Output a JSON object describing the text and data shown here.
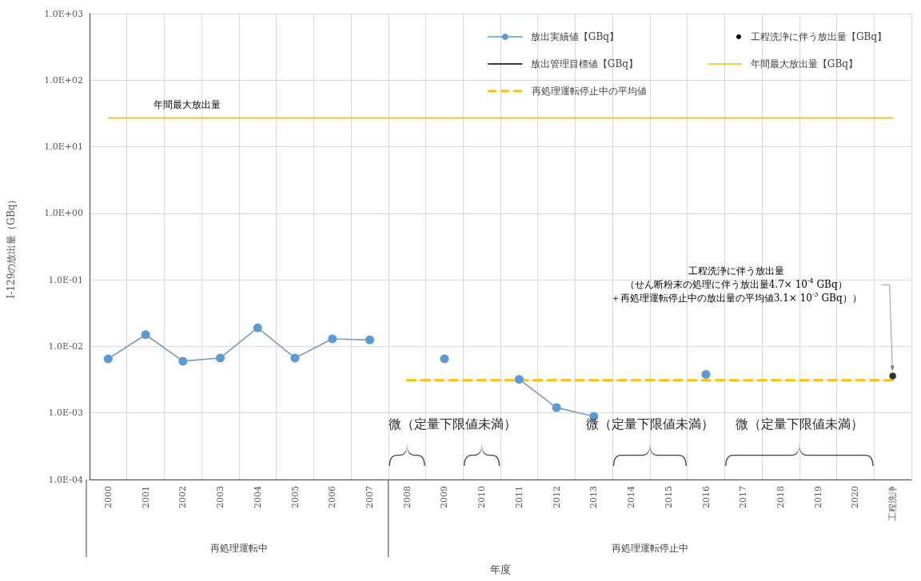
{
  "chart_data": {
    "type": "line",
    "xlabel": "年度",
    "ylabel": "I-129の放出量（GBq）",
    "categories": [
      "2000",
      "2001",
      "2002",
      "2003",
      "2004",
      "2005",
      "2006",
      "2007",
      "2008",
      "2009",
      "2010",
      "2011",
      "2012",
      "2013",
      "2014",
      "2015",
      "2016",
      "2017",
      "2018",
      "2019",
      "2020",
      "工程洗浄"
    ],
    "series": [
      {
        "name": "放出実績値【GBq】",
        "color": "#5b9bd5",
        "marker": "circle",
        "values": [
          0.0065,
          0.015,
          0.006,
          0.0067,
          0.019,
          0.0067,
          0.013,
          0.0125,
          null,
          0.0065,
          null,
          0.0032,
          0.0012,
          0.00089,
          null,
          null,
          0.0038,
          null,
          null,
          null,
          null,
          null
        ]
      },
      {
        "name": "工程洗浄に伴う放出量【GBq】",
        "type": "scatter",
        "color": "#000000",
        "marker": "circle",
        "values": [
          null,
          null,
          null,
          null,
          null,
          null,
          null,
          null,
          null,
          null,
          null,
          null,
          null,
          null,
          null,
          null,
          null,
          null,
          null,
          null,
          null,
          0.0036
        ]
      },
      {
        "name": "放出管理目標値【GBq】",
        "color": "#000000",
        "marker": "none",
        "values": [
          null,
          null,
          null,
          null,
          null,
          null,
          null,
          null,
          null,
          null,
          null,
          null,
          null,
          null,
          null,
          null,
          null,
          null,
          null,
          null,
          null,
          null
        ]
      },
      {
        "name": "年間最大放出量【GBq】",
        "color": "#ffc000",
        "marker": "none",
        "values": [
          27,
          27,
          27,
          27,
          27,
          27,
          27,
          27,
          27,
          27,
          27,
          27,
          27,
          27,
          27,
          27,
          27,
          27,
          27,
          27,
          27,
          27
        ]
      },
      {
        "name": "再処理運転停止中の平均値",
        "color": "#ffc000",
        "marker": "none",
        "line_style": "dashed",
        "values": [
          null,
          null,
          null,
          null,
          null,
          null,
          null,
          null,
          0.0031,
          0.0031,
          0.0031,
          0.0031,
          0.0031,
          0.0031,
          0.0031,
          0.0031,
          0.0031,
          0.0031,
          0.0031,
          0.0031,
          0.0031,
          0.0031
        ]
      }
    ],
    "log": "y",
    "ylim": [
      0.0001,
      1000
    ],
    "yticks": [
      {
        "value": 0.0001,
        "label": "1.0E-04"
      },
      {
        "value": 0.001,
        "label": "1.0E-03"
      },
      {
        "value": 0.01,
        "label": "1.0E-02"
      },
      {
        "value": 0.1,
        "label": "1.0E-01"
      },
      {
        "value": 1,
        "label": "1.0E+00"
      },
      {
        "value": 10,
        "label": "1.0E+01"
      },
      {
        "value": 100,
        "label": "1.0E+02"
      },
      {
        "value": 1000,
        "label": "1.0E+03"
      }
    ],
    "grid": true,
    "legend": "top right",
    "annotations": [
      {
        "text": "年間最大放出量",
        "x": "2001",
        "y": 27
      },
      "工程洗浄に伴う放出量",
      "（せん断粉末の処理に伴う放出量4.7× 10$^{-4}$ GBq）",
      "＋再処理運転停止中の放出量の平均値3.1× 10$^{-3}$ GBq））",
      "微（定量下限値未満）",
      "微（定量下限値未満）",
      "微（定量下限値未満）",
      "再処理運転中",
      "再処理運転停止中"
    ]
  }
}
